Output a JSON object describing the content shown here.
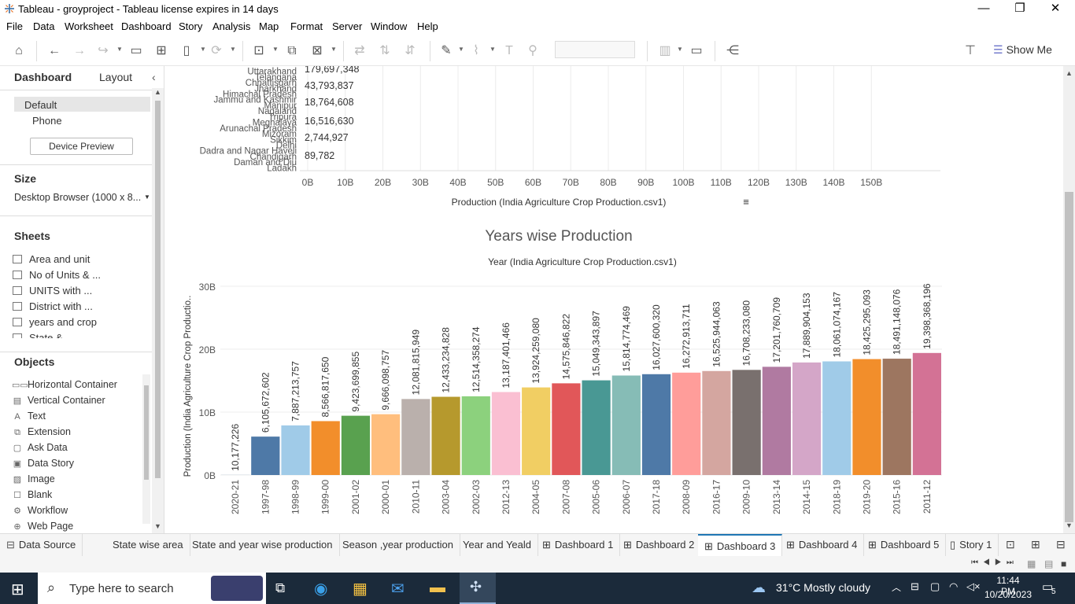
{
  "window": {
    "title": "Tableau - groyproject - Tableau license expires in 14 days",
    "minimize": "—",
    "restore": "❐",
    "close": "✕"
  },
  "menu": [
    "File",
    "Data",
    "Worksheet",
    "Dashboard",
    "Story",
    "Analysis",
    "Map",
    "Format",
    "Server",
    "Window",
    "Help"
  ],
  "toolbar": {
    "show_me": "Show Me"
  },
  "left_panel": {
    "tab_dashboard": "Dashboard",
    "tab_layout": "Layout",
    "devices": [
      "Default",
      "Phone"
    ],
    "device_preview": "Device Preview",
    "size_header": "Size",
    "size_value": "Desktop Browser (1000 x 8...",
    "sheets_header": "Sheets",
    "sheets": [
      "Area and unit",
      "No of Units & ...",
      "UNITS with ...",
      "District with ...",
      "years and crop",
      "State &"
    ],
    "objects_header": "Objects",
    "objects": [
      {
        "label": "Horizontal Container",
        "icon": "horizontal-container-icon",
        "glyph": "▭▭"
      },
      {
        "label": "Vertical Container",
        "icon": "vertical-container-icon",
        "glyph": "▤"
      },
      {
        "label": "Text",
        "icon": "text-icon",
        "glyph": "A"
      },
      {
        "label": "Extension",
        "icon": "extension-icon",
        "glyph": "⧉"
      },
      {
        "label": "Ask Data",
        "icon": "ask-data-icon",
        "glyph": "▢"
      },
      {
        "label": "Data Story",
        "icon": "data-story-icon",
        "glyph": "▣"
      },
      {
        "label": "Image",
        "icon": "image-icon",
        "glyph": "▨"
      },
      {
        "label": "Blank",
        "icon": "blank-icon",
        "glyph": "☐"
      },
      {
        "label": "Workflow",
        "icon": "workflow-icon",
        "glyph": "⚙"
      },
      {
        "label": "Web Page",
        "icon": "web-page-icon",
        "glyph": "⊕"
      }
    ]
  },
  "chart_data": [
    {
      "type": "bar",
      "orientation": "horizontal",
      "title": "",
      "xlabel": "Production (India Agriculture Crop Production.csv1)",
      "xlim": [
        0,
        160
      ],
      "x_ticks": [
        "0B",
        "10B",
        "20B",
        "30B",
        "40B",
        "50B",
        "60B",
        "70B",
        "80B",
        "90B",
        "100B",
        "110B",
        "120B",
        "130B",
        "140B",
        "150B"
      ],
      "categories": [
        "Uttarakhand",
        "Telangana",
        "Chhattisgarh",
        "Jharkhand",
        "Himachal Pradesh",
        "Jammu and Kashmir",
        "Manipur",
        "Nagaland",
        "Tripura",
        "Meghalaya",
        "Arunachal Pradesh",
        "Mizoram",
        "Sikkim",
        "Delhi",
        "Dadra and Nagar Haveli",
        "Chandigarh",
        "Daman and Diu",
        "Ladakh"
      ],
      "data_labels": [
        "179,697,348",
        "43,793,837",
        "18,764,608",
        "16,516,630",
        "2,744,927",
        "89,782"
      ]
    },
    {
      "type": "bar",
      "title": "Years wise Production",
      "subtitle": "Year (India Agriculture Crop Production.csv1)",
      "ylabel": "Production (India Agriculture Crop Productio..",
      "ylim": [
        0,
        30
      ],
      "y_ticks": [
        "0B",
        "10B",
        "20B",
        "30B"
      ],
      "categories": [
        "2020-21",
        "1997-98",
        "1998-99",
        "1999-00",
        "2001-02",
        "2000-01",
        "2010-11",
        "2003-04",
        "2002-03",
        "2012-13",
        "2004-05",
        "2007-08",
        "2005-06",
        "2006-07",
        "2017-18",
        "2008-09",
        "2016-17",
        "2009-10",
        "2013-14",
        "2014-15",
        "2018-19",
        "2019-20",
        "2015-16",
        "2011-12"
      ],
      "values": [
        0.010177226,
        6.105672602,
        7.887213757,
        8.56681765,
        9.423699855,
        9.666098757,
        12.081815949,
        12.433234828,
        12.514358274,
        13.187401466,
        13.92425908,
        14.575846822,
        15.049343897,
        15.814774469,
        16.02760032,
        16.272913711,
        16.525944063,
        16.70823308,
        17.201760709,
        17.889904153,
        18.061074167,
        18.425295093,
        18.491148076,
        19.398368196
      ],
      "labels": [
        "10,177,226",
        "6,105,672,602",
        "7,887,213,757",
        "8,566,817,650",
        "9,423,699,855",
        "9,666,098,757",
        "12,081,815,949",
        "12,433,234,828",
        "12,514,358,274",
        "13,187,401,466",
        "13,924,259,080",
        "14,575,846,822",
        "15,049,343,897",
        "15,814,774,469",
        "16,027,600,320",
        "16,272,913,711",
        "16,525,944,063",
        "16,708,233,080",
        "17,201,760,709",
        "17,889,904,153",
        "18,061,074,167",
        "18,425,295,093",
        "18,491,148,076",
        "19,398,368,196"
      ],
      "colors": [
        "#4e79a7",
        "#4e79a7",
        "#a0cbe8",
        "#f28e2b",
        "#59a14f",
        "#ffbe7d",
        "#bab0ac",
        "#b6992d",
        "#8cd17d",
        "#fabfd2",
        "#f1ce63",
        "#e15759",
        "#499894",
        "#86bcb6",
        "#4e79a7",
        "#ff9d9a",
        "#d4a6a0",
        "#79706e",
        "#b07aa1",
        "#d4a6c8",
        "#a0cbe8",
        "#f28e2b",
        "#9d7660",
        "#d37295"
      ]
    }
  ],
  "sheet_tabs": [
    {
      "label": "Data Source",
      "icon": "data-source-icon"
    },
    {
      "label": "State wise area"
    },
    {
      "label": "State and year wise production"
    },
    {
      "label": "Season ,year production"
    },
    {
      "label": "Year and Yeald"
    },
    {
      "label": "Dashboard 1",
      "icon": "dashboard-icon"
    },
    {
      "label": "Dashboard 2",
      "icon": "dashboard-icon"
    },
    {
      "label": "Dashboard 3",
      "icon": "dashboard-icon",
      "active": true
    },
    {
      "label": "Dashboard 4",
      "icon": "dashboard-icon"
    },
    {
      "label": "Dashboard 5",
      "icon": "dashboard-icon"
    },
    {
      "label": "Story 1",
      "icon": "story-icon"
    }
  ],
  "taskbar": {
    "search_placeholder": "Type here to search",
    "weather": "31°C  Mostly cloudy",
    "time": "11:44 PM",
    "date": "10/20/2023",
    "notifications": "5"
  }
}
